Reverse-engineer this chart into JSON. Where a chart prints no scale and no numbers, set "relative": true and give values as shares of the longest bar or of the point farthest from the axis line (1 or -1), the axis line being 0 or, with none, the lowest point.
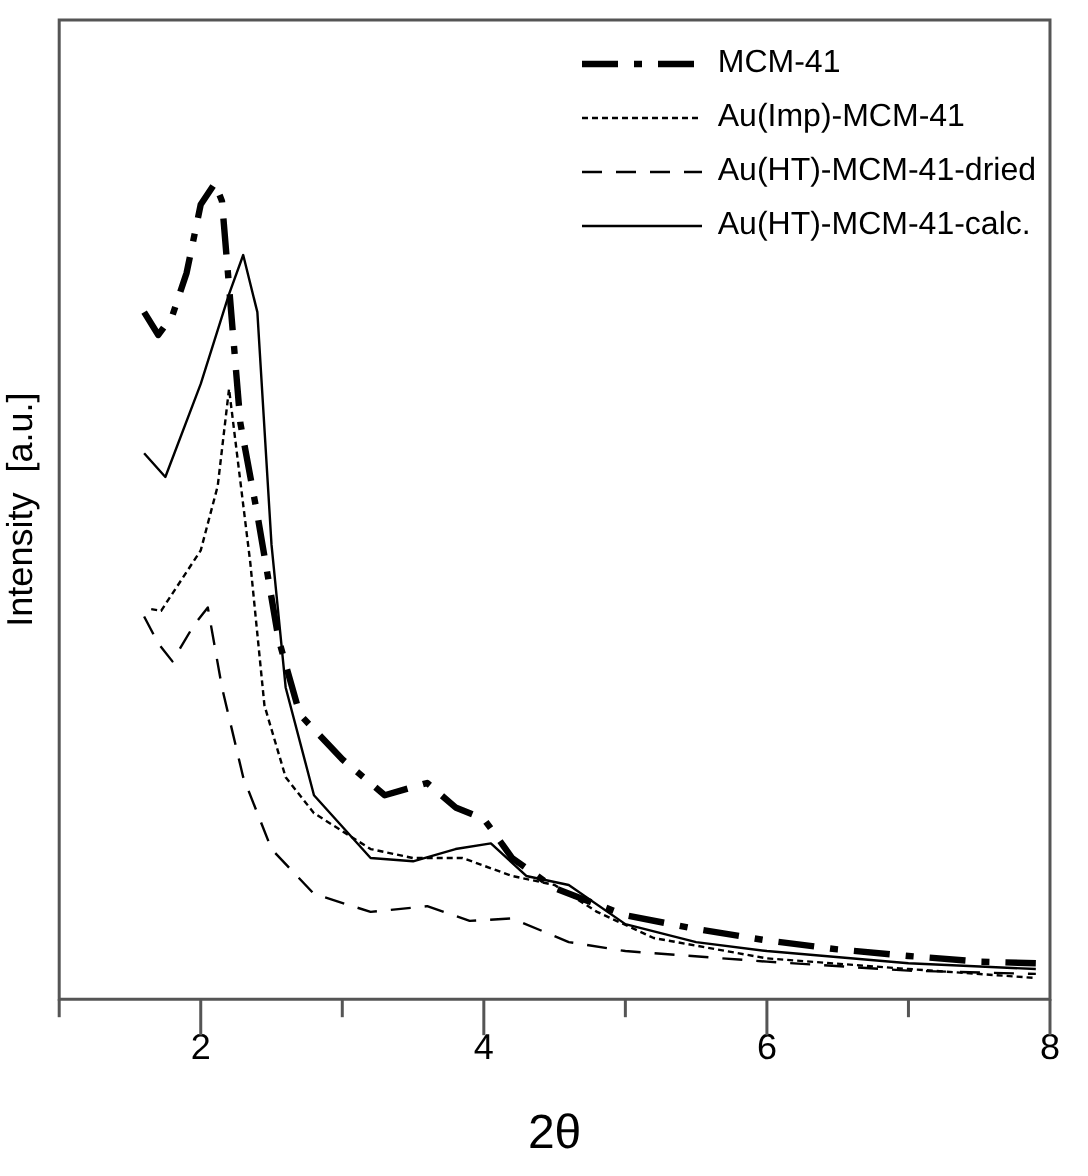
{
  "chart_data": {
    "type": "line",
    "xlabel": "2θ",
    "ylabel": "Intensity  [a.u.]",
    "relative": true,
    "legend": "top right",
    "grid": false,
    "marker": "none",
    "xlim": [
      1,
      8
    ],
    "xticks": [
      {
        "value": 1,
        "label": null
      },
      2,
      {
        "value": 3,
        "label": null
      },
      4,
      {
        "value": 5,
        "label": null
      },
      6,
      {
        "value": 7,
        "label": null
      },
      8
    ],
    "series": [
      {
        "name": "MCM-41",
        "color": "#000000",
        "line_style": "dashdot",
        "x": [
          1.6,
          1.7,
          1.8,
          1.9,
          2.0,
          2.1,
          2.15,
          2.28,
          2.4,
          2.55,
          2.7,
          3.0,
          3.3,
          3.6,
          3.8,
          4.0,
          4.2,
          4.5,
          5.0,
          5.5,
          6.0,
          6.5,
          7.0,
          7.5,
          7.9
        ],
        "values": [
          0.842,
          0.814,
          0.838,
          0.89,
          0.974,
          1.0,
          0.978,
          0.706,
          0.594,
          0.441,
          0.349,
          0.294,
          0.25,
          0.265,
          0.235,
          0.221,
          0.173,
          0.136,
          0.103,
          0.086,
          0.072,
          0.061,
          0.053,
          0.046,
          0.044
        ]
      },
      {
        "name": "Au(Imp)-MCM-41",
        "color": "#000000",
        "line_style": "dotted",
        "x": [
          1.65,
          1.72,
          2.0,
          2.12,
          2.2,
          2.35,
          2.45,
          2.6,
          2.8,
          3.2,
          3.5,
          3.85,
          4.2,
          4.5,
          4.8,
          5.2,
          6.0,
          7.0,
          7.9
        ],
        "values": [
          0.478,
          0.476,
          0.55,
          0.629,
          0.748,
          0.535,
          0.36,
          0.272,
          0.228,
          0.184,
          0.173,
          0.173,
          0.151,
          0.14,
          0.107,
          0.075,
          0.05,
          0.037,
          0.026
        ]
      },
      {
        "name": "Au(HT)-MCM-41-dried",
        "color": "#000000",
        "line_style": "dashed",
        "x": [
          1.6,
          1.7,
          1.8,
          1.95,
          2.05,
          2.15,
          2.3,
          2.5,
          2.8,
          3.2,
          3.6,
          3.9,
          4.2,
          4.6,
          5.0,
          6.0,
          7.0,
          7.9
        ],
        "values": [
          0.469,
          0.436,
          0.414,
          0.458,
          0.48,
          0.382,
          0.272,
          0.184,
          0.129,
          0.107,
          0.114,
          0.096,
          0.099,
          0.07,
          0.059,
          0.046,
          0.035,
          0.031
        ]
      },
      {
        "name": "Au(HT)-MCM-41-calc.",
        "color": "#000000",
        "line_style": "solid",
        "x": [
          1.6,
          1.75,
          2.0,
          2.2,
          2.3,
          2.4,
          2.5,
          2.6,
          2.8,
          3.2,
          3.5,
          3.8,
          4.05,
          4.3,
          4.6,
          5.0,
          5.5,
          6.0,
          7.0,
          7.9
        ],
        "values": [
          0.669,
          0.64,
          0.754,
          0.864,
          0.912,
          0.842,
          0.557,
          0.382,
          0.25,
          0.173,
          0.169,
          0.184,
          0.191,
          0.151,
          0.14,
          0.092,
          0.07,
          0.059,
          0.044,
          0.037
        ]
      }
    ]
  }
}
